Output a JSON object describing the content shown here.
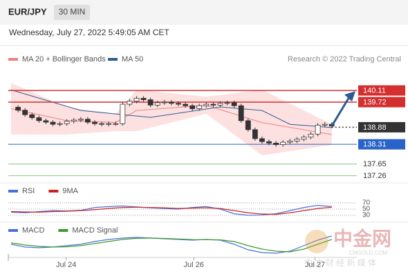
{
  "chart_data": {
    "type": "candlestick",
    "symbol": "EUR/JPY",
    "timeframe": "30 MIN",
    "timestamp": "Wednesday, July 27, 2022 5:49:05 AM CET",
    "legend": [
      "MA 20 + Bollinger Bands",
      "MA 50"
    ],
    "legend_colors": [
      "#f08080",
      "#2f5a96"
    ],
    "credit": "Research © 2022 Trading Central",
    "ylim": [
      137.09,
      141.52
    ],
    "xlim": [
      -0.4,
      49
    ],
    "xticks": [
      {
        "value": 7.9,
        "label": "Jul 24"
      },
      {
        "value": 26.2,
        "label": "Jul 26"
      },
      {
        "value": 43.6,
        "label": "Jul 27"
      }
    ],
    "closes": [
      139.55,
      139.45,
      139.3,
      139.2,
      139.1,
      139.05,
      138.98,
      139.0,
      139.08,
      139.12,
      139.15,
      139.05,
      139.0,
      138.98,
      139.0,
      139.0,
      139.65,
      139.75,
      139.85,
      139.8,
      139.62,
      139.7,
      139.72,
      139.68,
      139.65,
      139.6,
      139.5,
      139.6,
      139.65,
      139.62,
      139.68,
      139.7,
      139.6,
      139.1,
      138.8,
      138.5,
      138.4,
      138.35,
      138.3,
      138.38,
      138.42,
      138.48,
      138.55,
      138.65,
      138.95,
      138.98,
      138.92
    ],
    "band_x": [
      0,
      8,
      15,
      18,
      28,
      36,
      46
    ],
    "band_upper": [
      140.36,
      139.56,
      139.33,
      140.13,
      139.9,
      140.13,
      138.98
    ],
    "band_lower": [
      138.64,
      138.64,
      138.75,
      138.75,
      139.33,
      137.94,
      138.29
    ],
    "band_color": "#fde0e0",
    "ma50_x": [
      0,
      10,
      20,
      30,
      36,
      40,
      46
    ],
    "ma50": [
      140.13,
      139.44,
      139.21,
      139.56,
      139.44,
      138.98,
      138.87
    ],
    "levels": [
      140.11,
      139.72,
      138.88,
      138.31,
      137.65,
      137.26
    ],
    "level_colors": [
      "#d32f2f",
      "#d32f2f",
      "#333333",
      "#2962c8",
      "#4caf50",
      "#4caf50"
    ],
    "rsi": {
      "ylim": [
        20,
        80
      ],
      "yticks": [
        70,
        50,
        30
      ],
      "series": [
        {
          "name": "RSI",
          "color": "#4a6fd8",
          "values": [
            40,
            38,
            42,
            45,
            44,
            46,
            55,
            58,
            60,
            57,
            54,
            52,
            50,
            55,
            58,
            50,
            35,
            30,
            31,
            35,
            45,
            55,
            62,
            58
          ]
        },
        {
          "name": "9MA",
          "color": "#cc2222",
          "values": [
            42,
            41,
            40,
            42,
            43,
            45,
            48,
            52,
            55,
            56,
            55,
            54,
            52,
            53,
            54,
            52,
            45,
            38,
            34,
            33,
            38,
            45,
            52,
            56
          ]
        }
      ]
    },
    "macd": {
      "ylim": [
        -1,
        1
      ],
      "series": [
        {
          "name": "MACD",
          "color": "#4a6fd8",
          "values": [
            -0.1,
            -0.3,
            -0.35,
            -0.3,
            -0.2,
            -0.1,
            0.1,
            0.25,
            0.35,
            0.4,
            0.35,
            0.3,
            0.25,
            0.2,
            0.25,
            0.2,
            -0.1,
            -0.5,
            -0.7,
            -0.75,
            -0.6,
            -0.2,
            0.2,
            0.5
          ]
        },
        {
          "name": "MACD Signal",
          "color": "#3a9a2a",
          "values": [
            0,
            -0.15,
            -0.25,
            -0.3,
            -0.28,
            -0.2,
            -0.05,
            0.1,
            0.25,
            0.33,
            0.35,
            0.32,
            0.28,
            0.24,
            0.23,
            0.22,
            0.1,
            -0.2,
            -0.45,
            -0.6,
            -0.65,
            -0.45,
            -0.1,
            0.25
          ]
        }
      ]
    },
    "watermark": [
      "中金网",
      "CNGOLD.COM",
      "中 文 财 经 新 媒 体"
    ]
  }
}
